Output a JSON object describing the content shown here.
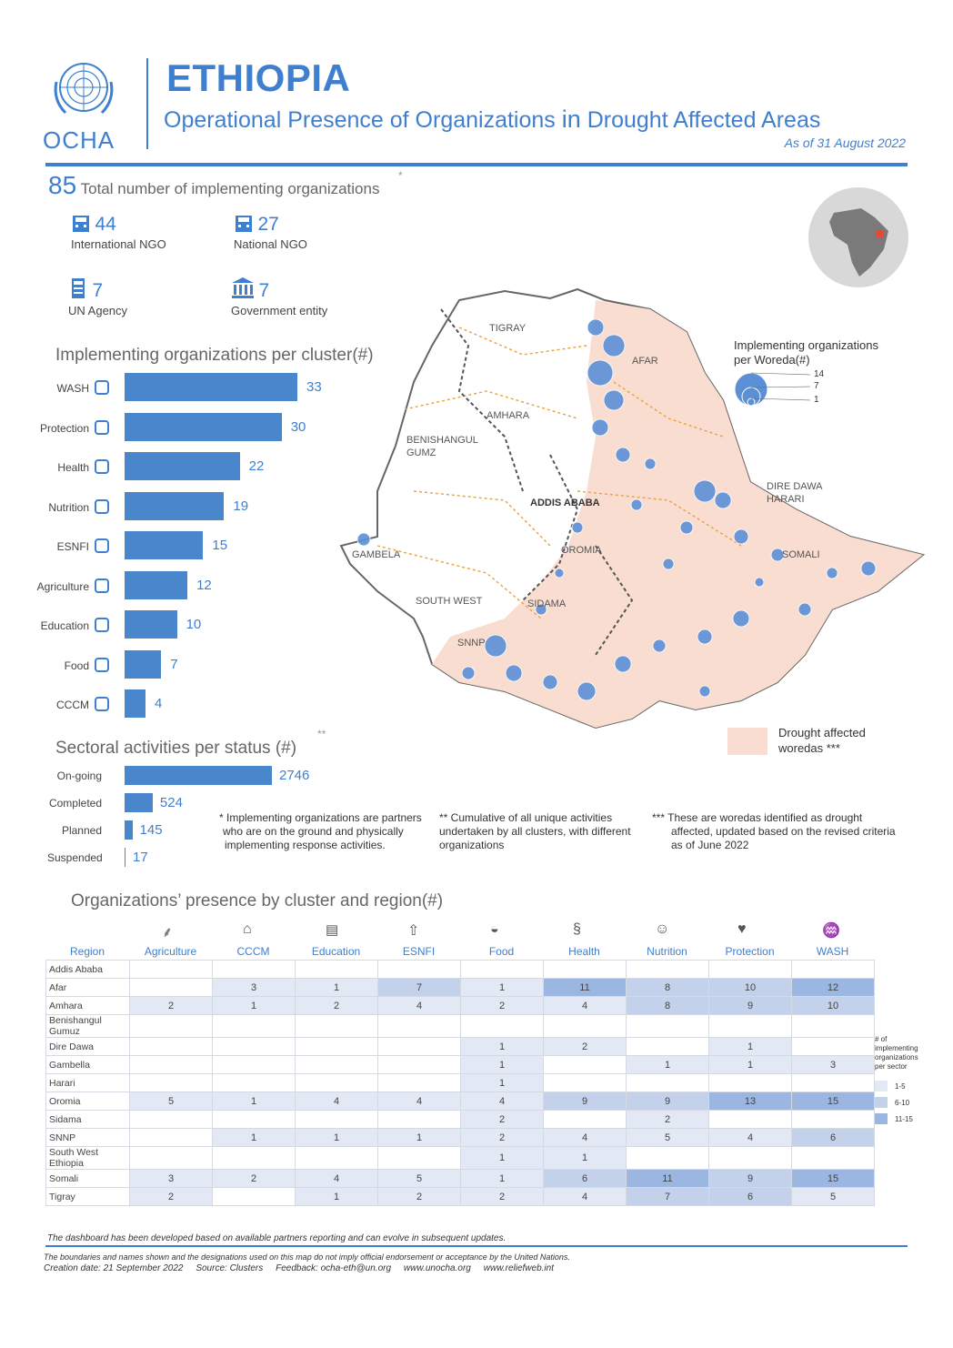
{
  "header": {
    "org": "OCHA",
    "title": "ETHIOPIA",
    "subtitle_a": "Operational Presence of Organizations ",
    "subtitle_in": "in",
    "subtitle_b": " Drought Affected Areas",
    "date": "As of 31 August 2022"
  },
  "totals": {
    "total": "85",
    "total_label": "Total number of implementing organizations",
    "star": "*",
    "intl_ngo": "44",
    "intl_ngo_label": "International NGO",
    "natl_ngo": "27",
    "natl_ngo_label": "National NGO",
    "un": "7",
    "un_label": "UN Agency",
    "gov": "7",
    "gov_label": "Government entity"
  },
  "colors": {
    "accent": "#3f7fcf",
    "bar": "#4a86cc",
    "drought": "#f9ddd0",
    "low": "#e2e8f4",
    "mid": "#c3d1ea",
    "high": "#9bb6e0"
  },
  "chart_data": [
    {
      "type": "bar",
      "title": "Implementing organizations per cluster(#)",
      "categories": [
        "WASH",
        "Protection",
        "Health",
        "Nutrition",
        "ESNFI",
        "Agriculture",
        "Education",
        "Food",
        "CCCM"
      ],
      "values": [
        33,
        30,
        22,
        19,
        15,
        12,
        10,
        7,
        4
      ],
      "xlim": [
        0,
        33
      ]
    },
    {
      "type": "bar",
      "title": "Sectoral activities per status (#)",
      "title_mark": "**",
      "categories": [
        "On-going",
        "Completed",
        "Planned",
        "Suspended"
      ],
      "values": [
        2746,
        524,
        145,
        17
      ],
      "xlim": [
        0,
        2746
      ]
    }
  ],
  "map": {
    "legend_title_1": "Implementing organizations",
    "legend_title_2": "per Woreda(#)",
    "legend_sizes": [
      "14",
      "7",
      "1"
    ],
    "drought_label_1": "Drought affected",
    "drought_label_2": "woredas ***",
    "regions": [
      "TIGRAY",
      "AFAR",
      "AMHARA",
      "BENISHANGUL",
      "GUMZ",
      "DIRE DAWA",
      "HARARI",
      "ADDIS ABABA",
      "GAMBELA",
      "OROMIA",
      "SOMALI",
      "SOUTH WEST",
      "SIDAMA",
      "SNNP"
    ]
  },
  "notes": {
    "n1a": "* Implementing organizations are partners",
    "n1b": "who are on the ground and physically",
    "n1c": "implementing response activities.",
    "n2a": "** Cumulative of all unique activities",
    "n2b": "undertaken  by all clusters, with different",
    "n2c": "organizations",
    "n3a": "*** These are woredas identified as drought",
    "n3b": "affected, updated based on the revised criteria",
    "n3c": "as of June 2022"
  },
  "table": {
    "title": "Organizations’ presence by cluster and region(#)",
    "region_header": "Region",
    "columns": [
      "Agriculture",
      "CCCM",
      "Education",
      "ESNFI",
      "Food",
      "Health",
      "Nutrition",
      "Protection",
      "WASH"
    ],
    "rows": [
      {
        "region": "Addis Ababa",
        "cells": [
          "",
          "",
          "",
          "",
          "",
          "",
          "",
          "",
          ""
        ]
      },
      {
        "region": "Afar",
        "cells": [
          "",
          "3",
          "1",
          "7",
          "1",
          "11",
          "8",
          "10",
          "12"
        ]
      },
      {
        "region": "Amhara",
        "cells": [
          "2",
          "1",
          "2",
          "4",
          "2",
          "4",
          "8",
          "9",
          "10"
        ]
      },
      {
        "region": "Benishangul Gumuz",
        "cells": [
          "",
          "",
          "",
          "",
          "",
          "",
          "",
          "",
          ""
        ]
      },
      {
        "region": "Dire Dawa",
        "cells": [
          "",
          "",
          "",
          "",
          "1",
          "2",
          "",
          "1",
          ""
        ]
      },
      {
        "region": "Gambella",
        "cells": [
          "",
          "",
          "",
          "",
          "1",
          "",
          "1",
          "1",
          "3"
        ]
      },
      {
        "region": "Harari",
        "cells": [
          "",
          "",
          "",
          "",
          "1",
          "",
          "",
          "",
          ""
        ]
      },
      {
        "region": "Oromia",
        "cells": [
          "5",
          "1",
          "4",
          "4",
          "4",
          "9",
          "9",
          "13",
          "15"
        ]
      },
      {
        "region": "Sidama",
        "cells": [
          "",
          "",
          "",
          "",
          "2",
          "",
          "2",
          "",
          ""
        ]
      },
      {
        "region": "SNNP",
        "cells": [
          "",
          "1",
          "1",
          "1",
          "2",
          "4",
          "5",
          "4",
          "6"
        ]
      },
      {
        "region": "South West Ethiopia",
        "cells": [
          "",
          "",
          "",
          "",
          "1",
          "1",
          "",
          "",
          ""
        ]
      },
      {
        "region": "Somali",
        "cells": [
          "3",
          "2",
          "4",
          "5",
          "1",
          "6",
          "11",
          "9",
          "15"
        ]
      },
      {
        "region": "Tigray",
        "cells": [
          "2",
          "",
          "1",
          "2",
          "2",
          "4",
          "7",
          "6",
          "5"
        ]
      }
    ],
    "legend_title": "# of implementing organizations per sector",
    "legend": [
      "1-5",
      "6-10",
      "11-15"
    ]
  },
  "footer": {
    "line1": "The dashboard has been developed based on available partners reporting and can evolve in subsequent updates.",
    "line2": "The boundaries and names shown and the designations used on this map do not imply official endorsement or acceptance by the United Nations.",
    "line3": "Creation date: 21 September 2022     Source: Clusters     Feedback: ocha-eth@un.org     www.unocha.org     www.reliefweb.int"
  }
}
